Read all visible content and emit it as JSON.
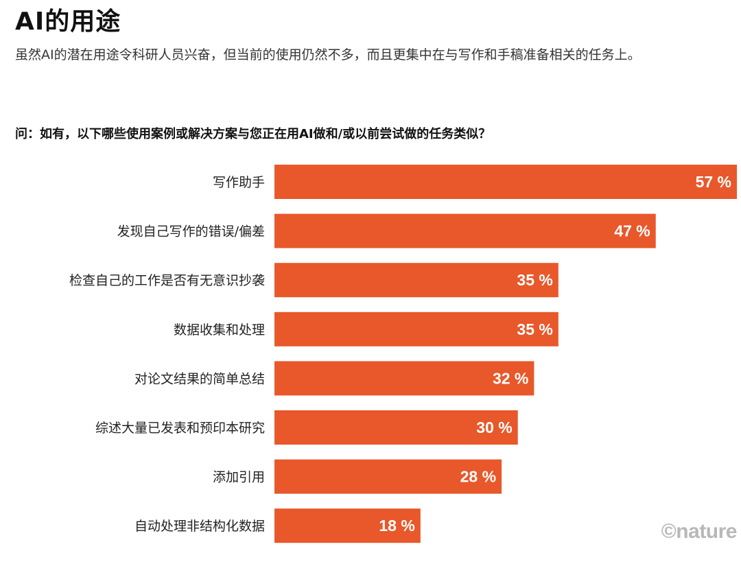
{
  "title": "AI的用途",
  "subtitle": "虽然AI的潜在用途令科研人员兴奋，但当前的使用仍然不多，而且更集中在与写作和手稿准备相关的任务上。",
  "question": "问：如有，以下哪些使用案例或解决方案与您正在用AI做和/或以前尝试做的任务类似？",
  "credit": "©nature",
  "colors": {
    "bar": "#E8582A",
    "label_text": "#ffffff"
  },
  "chart_data": {
    "type": "bar",
    "orientation": "horizontal",
    "categories": [
      "写作助手",
      "发现自己写作的错误/偏差",
      "检查自己的工作是否有无意识抄袭",
      "数据收集和处理",
      "对论文结果的简单总结",
      "综述大量已发表和预印本研究",
      "添加引用",
      "自动处理非结构化数据"
    ],
    "values": [
      57,
      47,
      35,
      35,
      32,
      30,
      28,
      18
    ],
    "value_labels": [
      "57 %",
      "47 %",
      "35 %",
      "35 %",
      "32 %",
      "30 %",
      "28 %",
      "18 %"
    ],
    "unit": "%",
    "grid": false,
    "legend": "none"
  }
}
